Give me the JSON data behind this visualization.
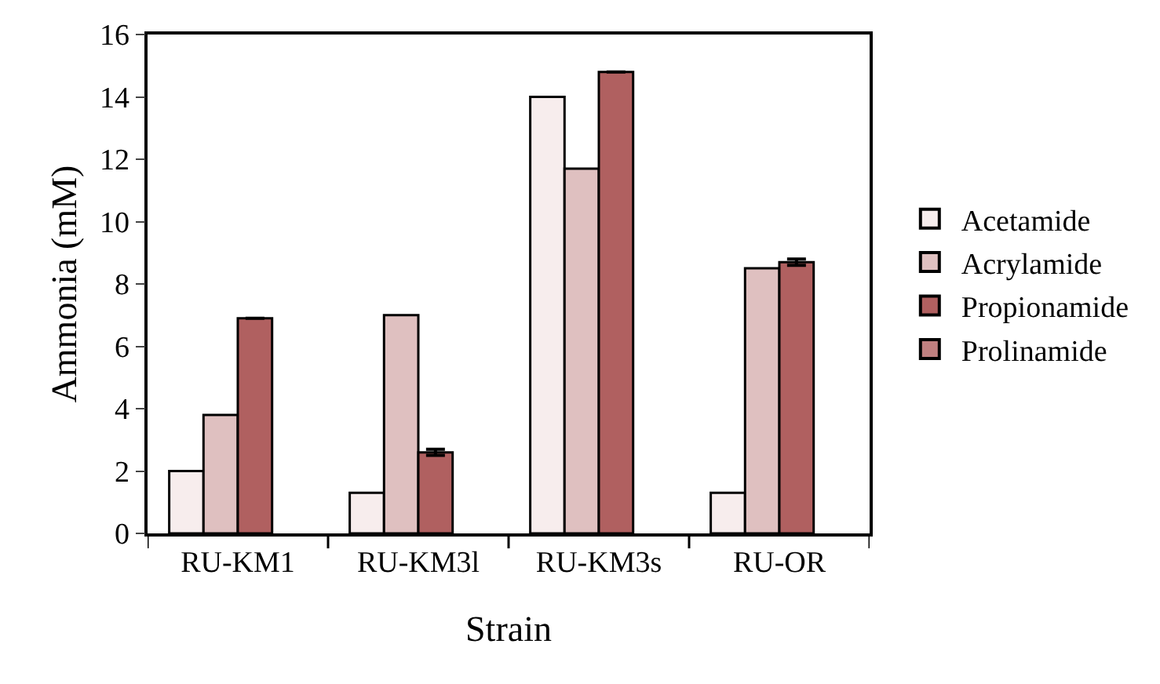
{
  "chart_data": {
    "type": "bar",
    "xlabel": "Strain",
    "ylabel": "Ammonia (mM)",
    "categories": [
      "RU-KM1",
      "RU-KM3l",
      "RU-KM3s",
      "RU-OR"
    ],
    "series": [
      {
        "name": "Acetamide",
        "color": "#f7eded",
        "values": [
          2.0,
          1.3,
          14.0,
          1.3
        ]
      },
      {
        "name": "Acrylamide",
        "color": "#dfc0c0",
        "values": [
          3.8,
          7.0,
          11.7,
          8.5
        ]
      },
      {
        "name": "Propionamide",
        "color": "#b06060",
        "values": [
          6.9,
          2.6,
          14.8,
          8.7
        ],
        "errors": [
          null,
          0.1,
          null,
          0.1
        ]
      },
      {
        "name": "Prolinamide",
        "color": "#c08080",
        "values": [
          null,
          null,
          null,
          null
        ]
      }
    ],
    "ylim": [
      0,
      16
    ],
    "yticks": [
      0,
      2,
      4,
      6,
      8,
      10,
      12,
      14,
      16
    ],
    "legend": "right"
  }
}
